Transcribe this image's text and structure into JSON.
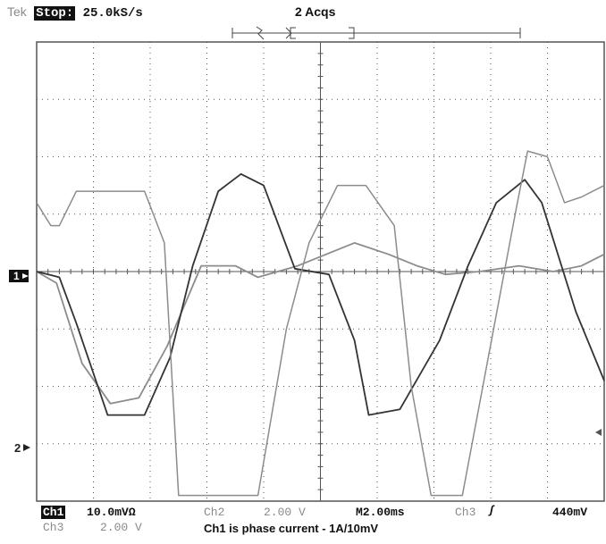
{
  "header": {
    "brand": "Tek",
    "run_state": "Stop:",
    "sample_rate": "25.0kS/s",
    "acquisitions": "2 Acqs"
  },
  "markers": {
    "ch1": "1",
    "ch2": "2"
  },
  "status_bar": {
    "ch1_label": "Ch1",
    "ch1_scale": "10.0mVΩ",
    "ch2_label": "Ch2",
    "ch2_scale": "2.00 V",
    "timebase": "M2.00ms",
    "trigger_source": "Ch3",
    "trigger_slope": "ʃ",
    "trigger_level": "440mV",
    "ch3_label": "Ch3",
    "ch3_scale": "2.00 V",
    "note": "Ch1 is phase current - 1A/10mV"
  },
  "colors": {
    "background": "#ffffff",
    "graticule": "#555555",
    "trace_dark": "#333333",
    "trace_light": "#8c8c8c"
  },
  "chart_data": {
    "type": "line",
    "title": "",
    "x_divisions": 10,
    "y_divisions": 8,
    "xunit": "divisions",
    "yunit": "divisions",
    "xlim": [
      0,
      10
    ],
    "ylim": [
      -4,
      4
    ],
    "series": [
      {
        "x": [
          0,
          0.35,
          0.8,
          1.3,
          1.8,
          2.3,
          2.9,
          3.5,
          3.9,
          4.6,
          5.1,
          5.6,
          6.2,
          6.7,
          7.2,
          7.8,
          8.5,
          9.1,
          9.6,
          10.0
        ],
        "y": [
          0.0,
          -0.2,
          -1.6,
          -2.3,
          -2.2,
          -1.3,
          0.1,
          0.1,
          -0.1,
          0.1,
          0.3,
          0.5,
          0.3,
          0.1,
          -0.05,
          0.0,
          0.1,
          0.0,
          0.1,
          0.3
        ]
      },
      {
        "x": [
          0,
          0.4,
          0.7,
          1.25,
          1.9,
          2.35,
          2.75,
          3.2,
          3.6,
          4.0,
          4.55,
          5.15,
          5.6,
          5.85,
          6.4,
          7.1,
          7.6,
          8.1,
          8.6,
          8.9,
          9.5,
          10.0
        ],
        "y": [
          0.0,
          -0.1,
          -0.9,
          -2.5,
          -2.5,
          -1.5,
          0.1,
          1.4,
          1.7,
          1.5,
          0.05,
          -0.05,
          -1.2,
          -2.5,
          -2.4,
          -1.2,
          0.1,
          1.2,
          1.6,
          1.2,
          -0.7,
          -1.9
        ]
      },
      {
        "x": [
          0,
          0.25,
          0.4,
          0.7,
          1.9,
          2.25,
          2.5,
          3.9,
          4.4,
          4.8,
          5.3,
          5.8,
          6.3,
          6.6,
          6.95,
          7.5,
          8.45,
          8.65,
          9.0,
          9.3,
          9.6,
          10.0
        ],
        "y": [
          1.2,
          0.8,
          0.8,
          1.4,
          1.4,
          0.5,
          -3.9,
          -3.9,
          -1.0,
          0.5,
          1.5,
          1.5,
          0.8,
          -2.0,
          -3.9,
          -3.9,
          1.1,
          2.1,
          2.0,
          1.2,
          1.3,
          1.5
        ]
      }
    ]
  }
}
